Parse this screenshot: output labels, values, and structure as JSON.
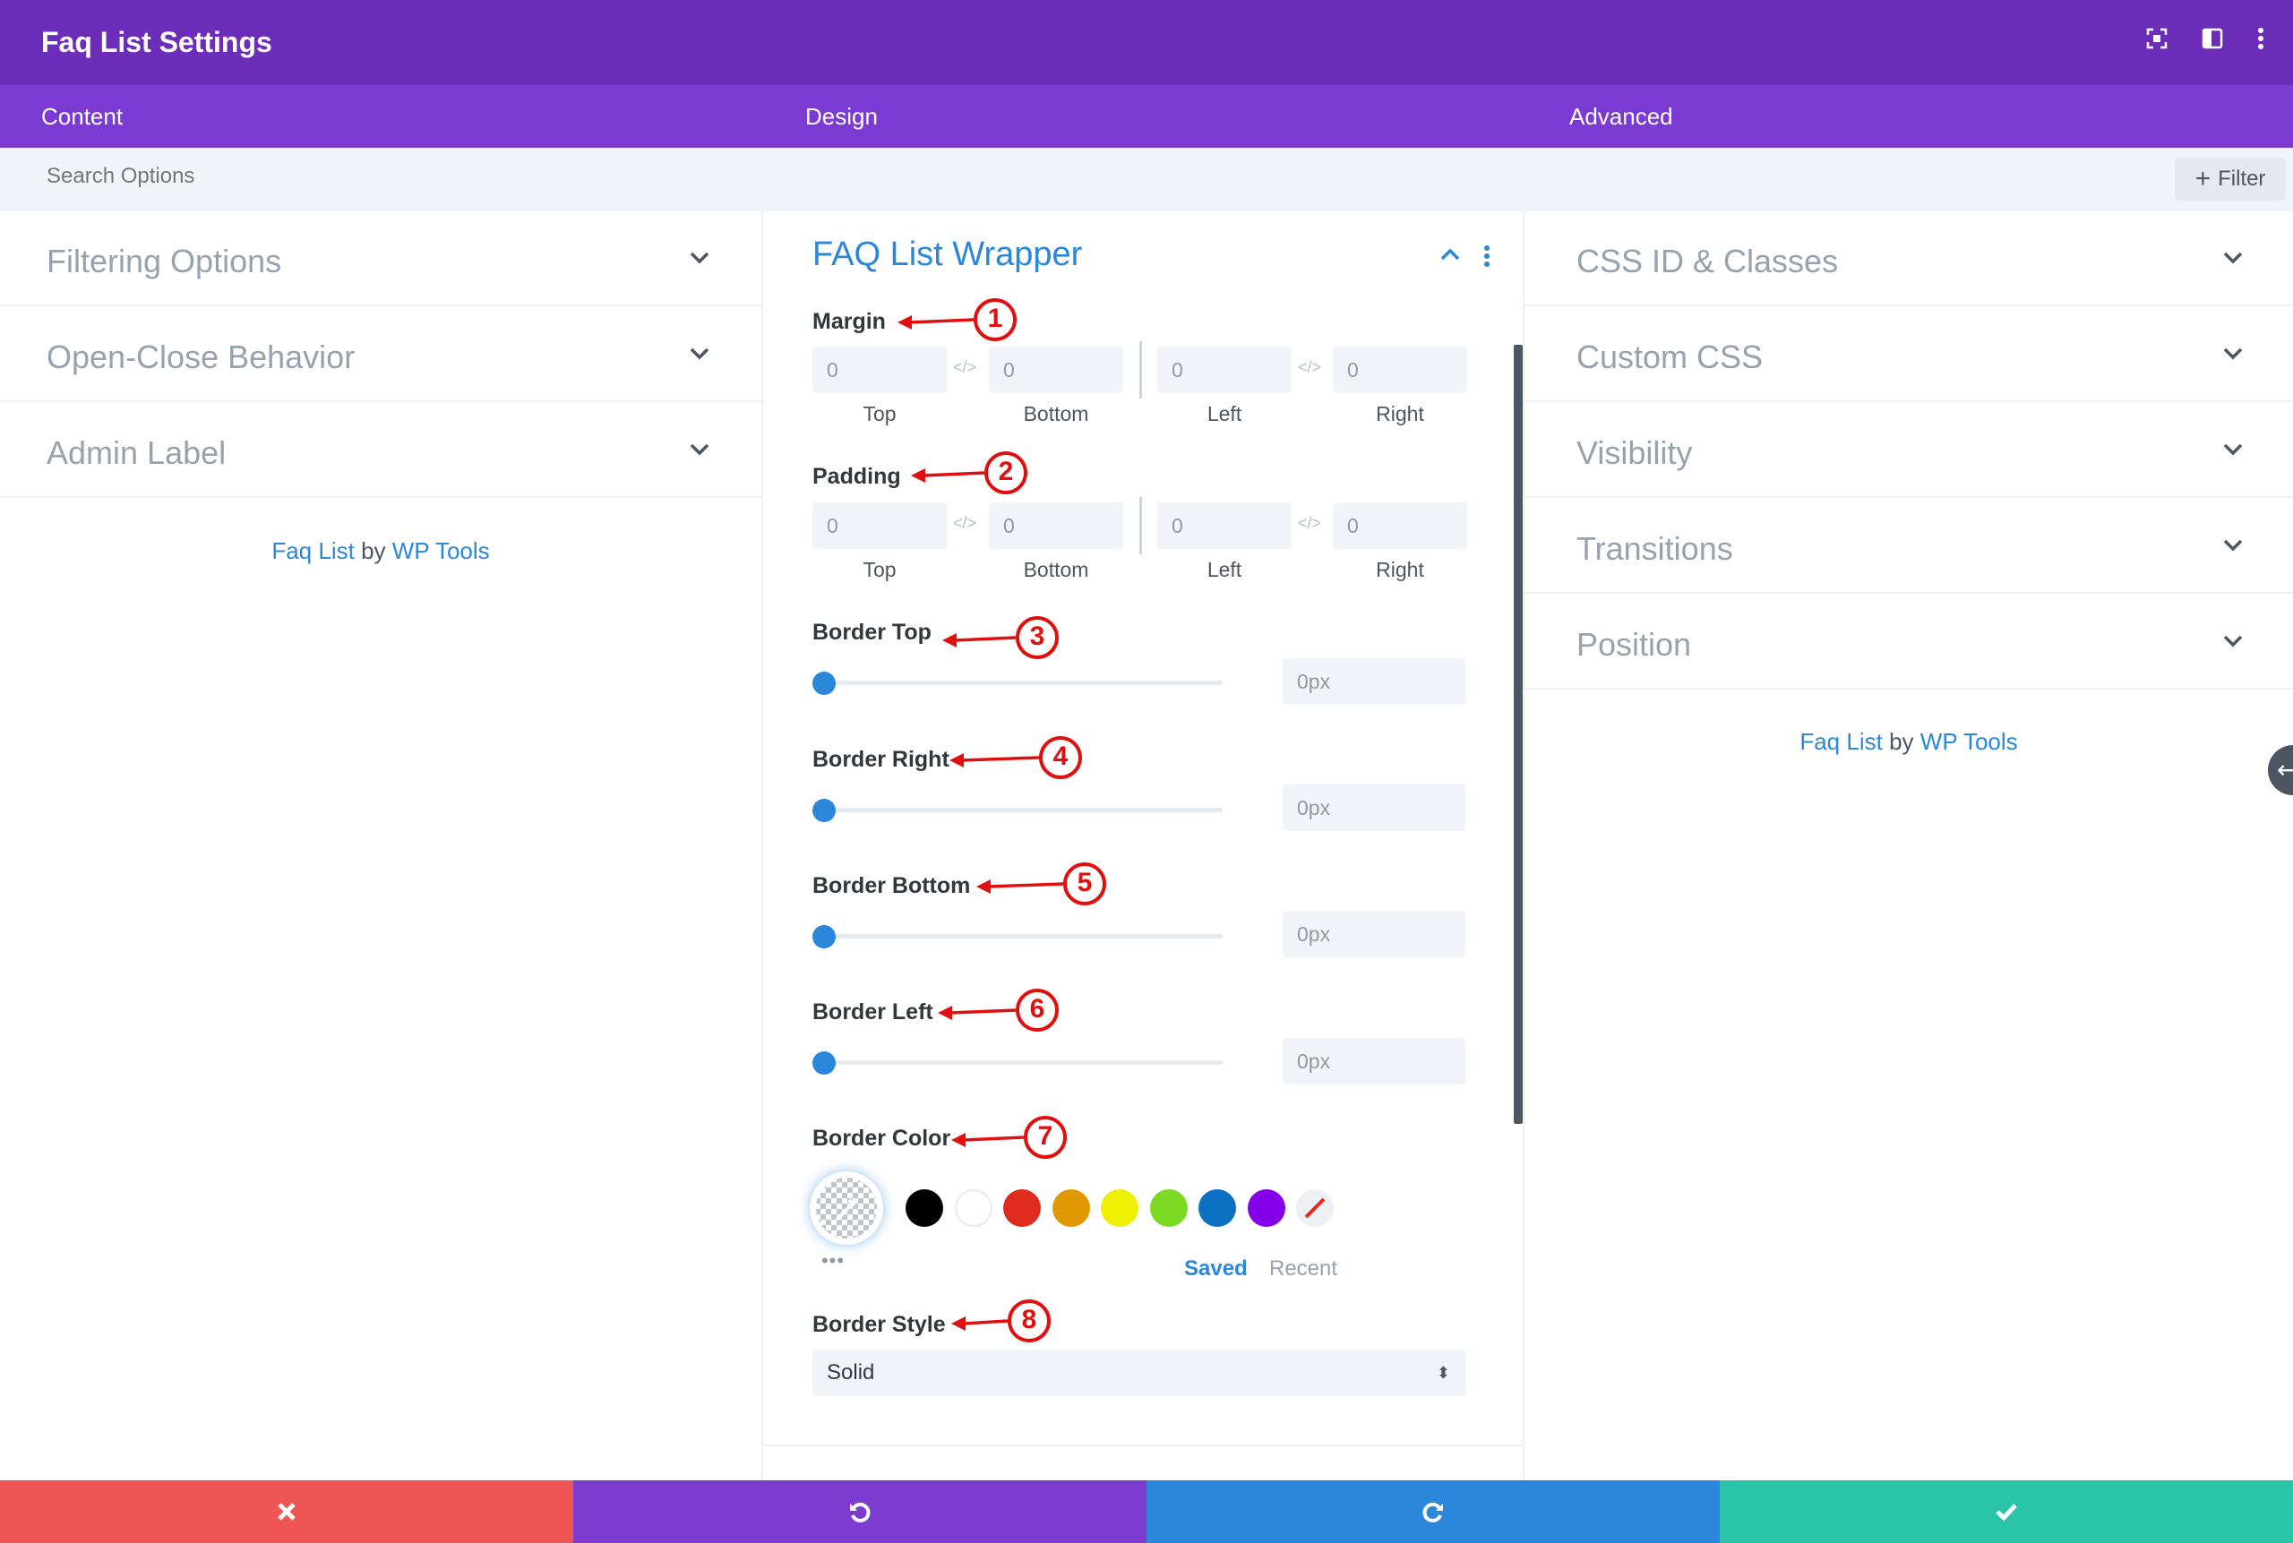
{
  "header": {
    "title": "Faq List Settings"
  },
  "tabs": [
    "Content",
    "Design",
    "Advanced"
  ],
  "search": {
    "placeholder": "Search Options",
    "filter_label": "Filter"
  },
  "left_toggles": [
    "Filtering Options",
    "Open-Close Behavior",
    "Admin Label"
  ],
  "right_toggles": [
    "CSS ID & Classes",
    "Custom CSS",
    "Visibility",
    "Transitions",
    "Position"
  ],
  "credit": {
    "plugin": "Faq List",
    "by": "by",
    "author": "WP Tools"
  },
  "section": {
    "title": "FAQ List Wrapper",
    "margin": {
      "label": "Margin",
      "top": "0",
      "bottom": "0",
      "left": "0",
      "right": "0"
    },
    "padding": {
      "label": "Padding",
      "top": "0",
      "bottom": "0",
      "left": "0",
      "right": "0"
    },
    "sides": {
      "top": "Top",
      "bottom": "Bottom",
      "left": "Left",
      "right": "Right"
    },
    "border_top": {
      "label": "Border Top",
      "value": "0px",
      "level": 0
    },
    "border_right": {
      "label": "Border Right",
      "value": "0px",
      "level": 0
    },
    "border_bottom": {
      "label": "Border Bottom",
      "value": "0px",
      "level": 0
    },
    "border_left": {
      "label": "Border Left",
      "value": "0px",
      "level": 0
    },
    "border_color": {
      "label": "Border Color",
      "swatches": [
        "#000000",
        "#ffffff",
        "#e02b20",
        "#e09900",
        "#edf000",
        "#7cda24",
        "#0c71c3",
        "#8300e9"
      ],
      "saved_label": "Saved",
      "recent_label": "Recent",
      "more": "•••"
    },
    "border_style": {
      "label": "Border Style",
      "value": "Solid"
    }
  },
  "annotations": [
    "1",
    "2",
    "3",
    "4",
    "5",
    "6",
    "7",
    "8"
  ],
  "colors": {
    "header": "#6c2eb9",
    "tabs": "#7b3bd2",
    "accent": "#2b87da",
    "cancel": "#ef5555",
    "undo": "#7e3bd0",
    "redo": "#2b87da",
    "save": "#29c4a9",
    "annotation": "#e01010"
  }
}
